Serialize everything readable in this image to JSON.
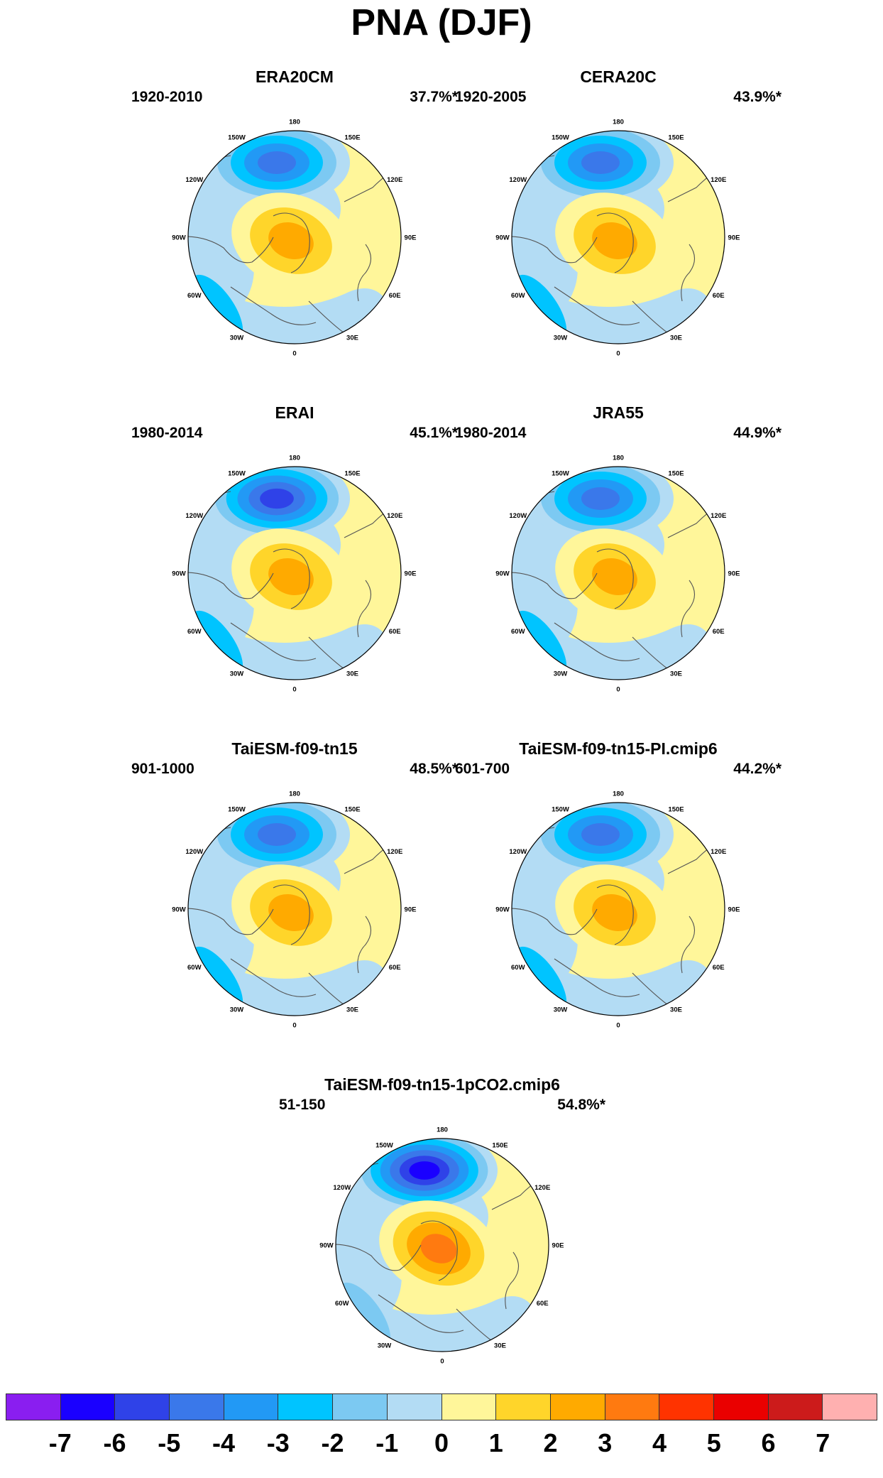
{
  "title": "PNA (DJF)",
  "colorbar": {
    "colors": [
      "#8a1ef0",
      "#1a00ff",
      "#2f42e8",
      "#3a78ea",
      "#2299f5",
      "#00c4ff",
      "#7cc9f2",
      "#b3dcf4",
      "#fff69a",
      "#ffd52a",
      "#ffaa00",
      "#ff7a10",
      "#ff3300",
      "#ea0000",
      "#cc1b1b",
      "#ffb0b0"
    ],
    "labels": [
      "-7",
      "-6",
      "-5",
      "-4",
      "-3",
      "-2",
      "-1",
      "0",
      "1",
      "2",
      "3",
      "4",
      "5",
      "6",
      "7"
    ]
  },
  "lon_labels": {
    "n": "180",
    "nne": "150E",
    "ne": "120E",
    "e": "90E",
    "se": "60E",
    "sse": "30E",
    "s": "0",
    "ssw": "30W",
    "sw": "60W",
    "w": "90W",
    "nw": "120W",
    "nnw": "150W"
  },
  "panels": [
    {
      "title": "ERA20CM",
      "period": "1920-2010",
      "percent": "37.7%*",
      "neg_peak": -5,
      "pos_peak": 3,
      "atl_neg": -3
    },
    {
      "title": "CERA20C",
      "period": "1920-2005",
      "percent": "43.9%*",
      "neg_peak": -5,
      "pos_peak": 3,
      "atl_neg": -3
    },
    {
      "title": "ERAI",
      "period": "1980-2014",
      "percent": "45.1%*",
      "neg_peak": -6,
      "pos_peak": 3,
      "atl_neg": -3
    },
    {
      "title": "JRA55",
      "period": "1980-2014",
      "percent": "44.9%*",
      "neg_peak": -5,
      "pos_peak": 3,
      "atl_neg": -3
    },
    {
      "title": "TaiESM-f09-tn15",
      "period": "901-1000",
      "percent": "48.5%*",
      "neg_peak": -5,
      "pos_peak": 3,
      "atl_neg": -3
    },
    {
      "title": "TaiESM-f09-tn15-PI.cmip6",
      "period": "601-700",
      "percent": "44.2%*",
      "neg_peak": -5,
      "pos_peak": 3,
      "atl_neg": -3
    },
    {
      "title": "TaiESM-f09-tn15-1pCO2.cmip6",
      "period": "51-150",
      "percent": "54.8%*",
      "neg_peak": -7,
      "pos_peak": 4,
      "atl_neg": -2
    }
  ]
}
